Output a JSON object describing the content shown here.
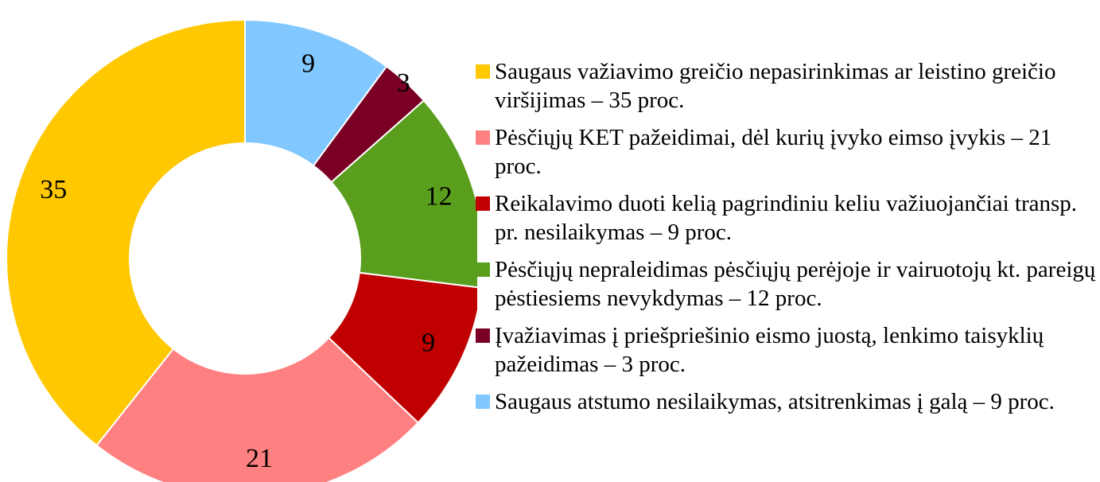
{
  "chart_data": {
    "type": "donut",
    "categories": [
      "Saugaus važiavimo greičio nepasirinkimas ar leistino greičio viršijimas – 35 proc.",
      "Pėsčiųjų KET pažeidimai, dėl kurių įvyko eimso įvykis – 21 proc.",
      "Reikalavimo duoti kelią pagrindiniu keliu važiuojančiai transp. pr. nesilaikymas – 9 proc.",
      "Pėsčiųjų nepraleidimas pėsčiųjų perėjoje ir vairuotojų kt. pareigų pėstiesiems nevykdymas – 12 proc.",
      "Įvažiavimas į priešpriešinio eismo juostą, lenkimo taisyklių pažeidimas – 3 proc.",
      "Saugaus atstumo nesilaikymas, atsitrenkimas į galą – 9 proc."
    ],
    "values": [
      35,
      21,
      9,
      12,
      3,
      9
    ],
    "colors": [
      "#ffc800",
      "#ff8080",
      "#c00000",
      "#5a9e1e",
      "#7a0026",
      "#80c8ff"
    ],
    "legend": "right"
  }
}
